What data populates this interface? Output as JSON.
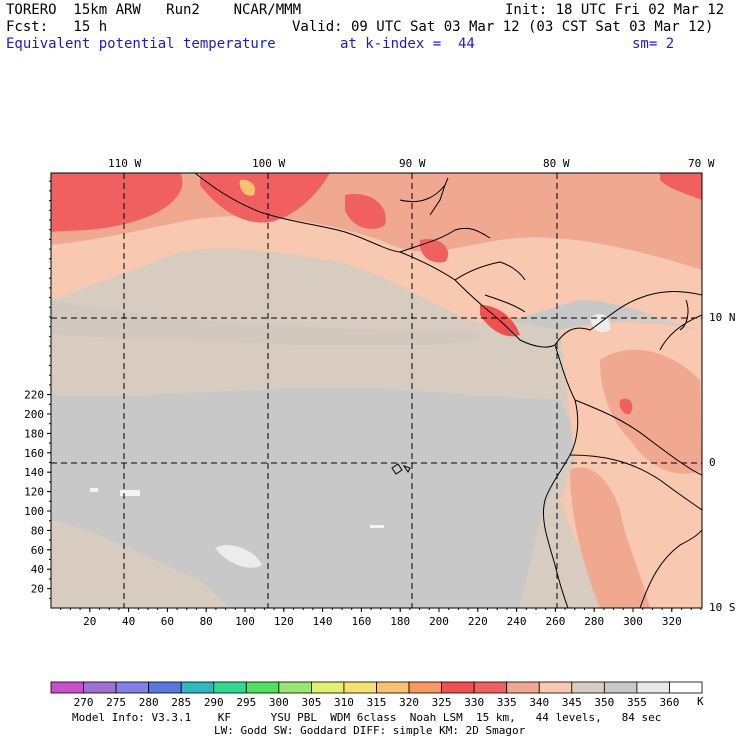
{
  "header": {
    "model": "TORERO  15km ARW   Run2    NCAR/MMM",
    "init": "Init: 18 UTC Fri 02 Mar 12",
    "fcst": "Fcst:   15 h",
    "valid": "Valid: 09 UTC Sat 03 Mar 12 (03 CST Sat 03 Mar 12)",
    "field": "Equivalent potential temperature",
    "level": "at k-index =  44",
    "smoothing": "sm= 2"
  },
  "map": {
    "lon_labels": [
      "110 W",
      "100 W",
      "90 W",
      "80 W",
      "70 W"
    ],
    "lat_labels": [
      "10 N",
      "0",
      "10 S"
    ],
    "y_ticks": [
      "20",
      "40",
      "60",
      "80",
      "100",
      "120",
      "140",
      "160",
      "180",
      "200",
      "220"
    ],
    "x_ticks": [
      "20",
      "40",
      "60",
      "80",
      "100",
      "120",
      "140",
      "160",
      "180",
      "200",
      "220",
      "240",
      "260",
      "280",
      "300",
      "320"
    ]
  },
  "colorbar": {
    "labels": [
      "270",
      "275",
      "280",
      "285",
      "290",
      "295",
      "300",
      "305",
      "310",
      "315",
      "320",
      "325",
      "330",
      "335",
      "340",
      "345",
      "350",
      "355",
      "360"
    ],
    "unit": "K",
    "colors": [
      "#c850c8",
      "#a070d0",
      "#8080e8",
      "#5878e0",
      "#30b8c0",
      "#30d890",
      "#50e060",
      "#98e870",
      "#e0f070",
      "#f8e070",
      "#f8c070",
      "#f89860",
      "#f05050",
      "#f06060",
      "#f0a890",
      "#f8c8b0",
      "#d8ccc0",
      "#c8c8c8",
      "#e8e8e8",
      "#ffffff"
    ]
  },
  "footer": {
    "line1": "Model Info: V3.3.1    KF      YSU PBL  WDM 6class  Noah LSM  15 km,   44 levels,   84 sec",
    "line2": "LW: Godd SW: Goddard DIFF: simple KM: 2D Smagor"
  }
}
